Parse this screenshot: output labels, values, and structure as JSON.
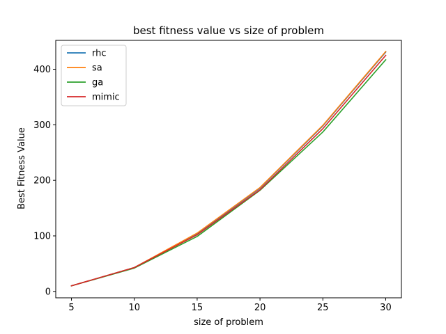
{
  "chart_data": {
    "type": "line",
    "title": "best fitness value vs size of problem",
    "xlabel": "size of problem",
    "ylabel": "Best Fitness Value",
    "x": [
      5,
      10,
      15,
      20,
      25,
      30
    ],
    "xlim": [
      3.75,
      31.25
    ],
    "ylim": [
      -11.5,
      452
    ],
    "xticks": [
      "5",
      "10",
      "15",
      "20",
      "25",
      "30"
    ],
    "yticks": [
      "0",
      "100",
      "200",
      "300",
      "400"
    ],
    "grid": false,
    "legend_position": "top-left",
    "series": [
      {
        "name": "rhc",
        "color": "#1f77b4",
        "values": [
          10,
          43,
          104,
          186,
          298,
          431
        ]
      },
      {
        "name": "sa",
        "color": "#ff7f0e",
        "values": [
          10,
          43,
          105,
          187,
          299,
          432
        ]
      },
      {
        "name": "ga",
        "color": "#2ca02c",
        "values": [
          10,
          42,
          99,
          182,
          287,
          417
        ]
      },
      {
        "name": "mimic",
        "color": "#d62728",
        "values": [
          10,
          43,
          102,
          183,
          293,
          425
        ]
      }
    ]
  }
}
